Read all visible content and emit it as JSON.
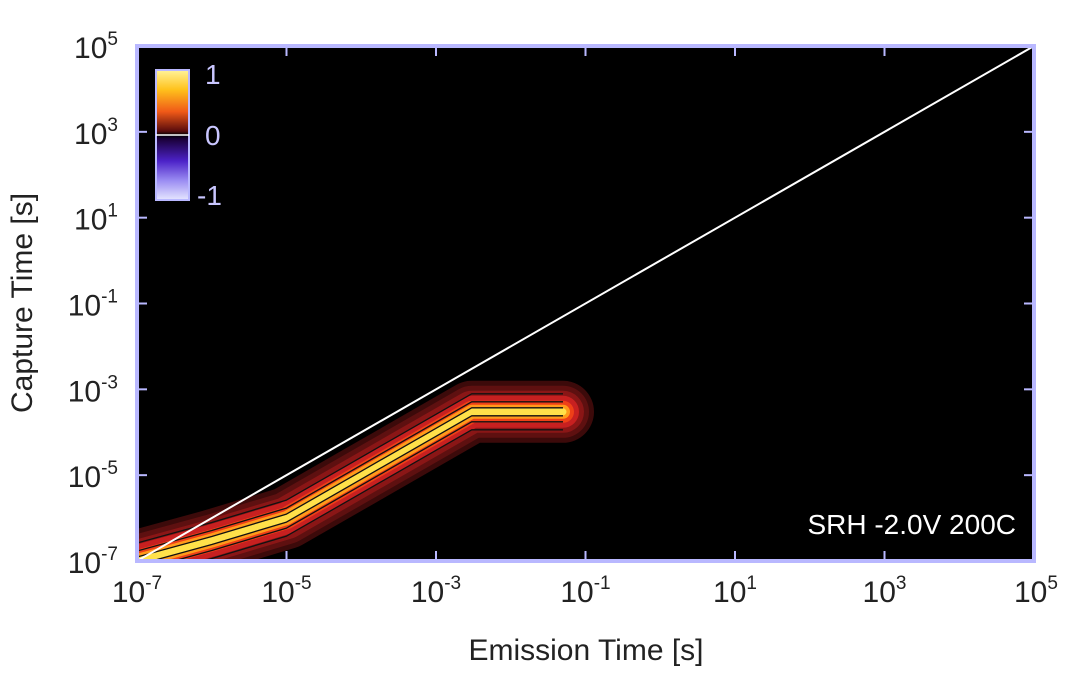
{
  "chart_data": {
    "type": "heatmap",
    "xlabel": "Emission Time  [s]",
    "ylabel": "Capture Time  [s]",
    "xscale": "log",
    "yscale": "log",
    "xlim": [
      1e-07,
      100000.0
    ],
    "ylim": [
      1e-07,
      100000.0
    ],
    "x_ticks": [
      {
        "base": "10",
        "exp": "-7",
        "value": 1e-07
      },
      {
        "base": "10",
        "exp": "-5",
        "value": 1e-05
      },
      {
        "base": "10",
        "exp": "-3",
        "value": 0.001
      },
      {
        "base": "10",
        "exp": "-1",
        "value": 0.1
      },
      {
        "base": "10",
        "exp": "1",
        "value": 10.0
      },
      {
        "base": "10",
        "exp": "3",
        "value": 1000.0
      },
      {
        "base": "10",
        "exp": "5",
        "value": 100000.0
      }
    ],
    "y_ticks": [
      {
        "base": "10",
        "exp": "-7",
        "value": 1e-07
      },
      {
        "base": "10",
        "exp": "-5",
        "value": 1e-05
      },
      {
        "base": "10",
        "exp": "-3",
        "value": 0.001
      },
      {
        "base": "10",
        "exp": "-1",
        "value": 0.1
      },
      {
        "base": "10",
        "exp": "1",
        "value": 10.0
      },
      {
        "base": "10",
        "exp": "3",
        "value": 1000.0
      },
      {
        "base": "10",
        "exp": "5",
        "value": 100000.0
      }
    ],
    "colorbar": {
      "range": [
        -1,
        1
      ],
      "tick_labels": [
        "1",
        "0",
        "-1"
      ],
      "position": "top-left"
    },
    "diagonal_line": {
      "x": [
        1e-07,
        100000.0
      ],
      "y": [
        1e-07,
        100000.0
      ],
      "color": "#ffffff"
    },
    "density_ridge": {
      "description_points_x": [
        1e-07,
        1e-06,
        1e-05,
        0.0001,
        0.001,
        0.003,
        0.01,
        0.05
      ],
      "description_points_y": [
        1e-07,
        3e-07,
        1e-06,
        1e-05,
        0.0001,
        0.0003,
        0.0003,
        0.0003
      ]
    },
    "annotation": "SRH -2.0V 200C",
    "annotation_position": "bottom-right",
    "grid": false,
    "colors": {
      "background": "#000000",
      "frame": "#b9b8ff",
      "high": "#fff07a",
      "mid": "#e02828",
      "low": "#3a0a0a"
    }
  }
}
